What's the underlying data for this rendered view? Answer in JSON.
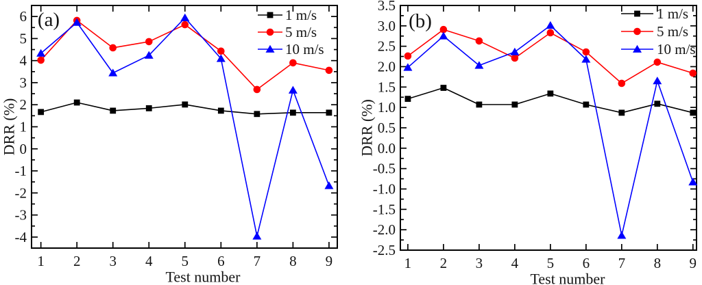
{
  "figure": {
    "xlabel": "Test number",
    "ylabel": "DRR (%)"
  },
  "chart_data": [
    {
      "type": "line",
      "panel_label": "(a)",
      "xlabel": "Test number",
      "ylabel": "DRR (%)",
      "x": [
        1,
        2,
        3,
        4,
        5,
        6,
        7,
        8,
        9
      ],
      "xtick_labels": [
        "1",
        "2",
        "3",
        "4",
        "5",
        "6",
        "7",
        "8",
        "9"
      ],
      "xlim": [
        0.74,
        9.23
      ],
      "ylim": [
        -4.5,
        6.5
      ],
      "ytick_values": [
        6,
        5,
        4,
        3,
        2,
        1,
        0,
        -1,
        -2,
        -3,
        -4
      ],
      "ytick_labels": [
        "6",
        "5",
        "4",
        "3",
        "2",
        "1",
        "0",
        "-1",
        "-2",
        "-3",
        "-4"
      ],
      "ytick_minor_step": 0.5,
      "grid": false,
      "legend_position": "top-right",
      "series": [
        {
          "name": "1 m/s",
          "color": "#000000",
          "marker": "square",
          "values": [
            1.67,
            2.1,
            1.73,
            1.84,
            2.01,
            1.73,
            1.58,
            1.64,
            1.64
          ]
        },
        {
          "name": "5 m/s",
          "color": "#ff0000",
          "marker": "circle",
          "values": [
            4.02,
            5.82,
            4.58,
            4.86,
            5.63,
            4.43,
            2.69,
            3.9,
            3.56
          ]
        },
        {
          "name": "10 m/s",
          "color": "#0000ff",
          "marker": "triangle",
          "values": [
            4.33,
            5.73,
            3.44,
            4.24,
            5.94,
            4.09,
            -3.96,
            2.66,
            -1.67
          ]
        }
      ]
    },
    {
      "type": "line",
      "panel_label": "(b)",
      "xlabel": "Test number",
      "ylabel": "DRR (%)",
      "x": [
        1,
        2,
        3,
        4,
        5,
        6,
        7,
        8,
        9
      ],
      "xtick_labels": [
        "1",
        "2",
        "3",
        "4",
        "5",
        "6",
        "7",
        "8",
        "9"
      ],
      "xlim": [
        0.79,
        9.1
      ],
      "ylim": [
        -2.5,
        3.5
      ],
      "ytick_values": [
        3.5,
        3.0,
        2.5,
        2.0,
        1.5,
        1.0,
        0.5,
        0.0,
        -0.5,
        -1.0,
        -1.5,
        -2.0,
        -2.5
      ],
      "ytick_labels": [
        "3.5",
        "3.0",
        "2.5",
        "2.0",
        "1.5",
        "1.0",
        "0.5",
        "0.0",
        "-0.5",
        "-1.0",
        "-1.5",
        "-2.0",
        "-2.5"
      ],
      "ytick_minor_step": 0.25,
      "grid": false,
      "legend_position": "top-right",
      "series": [
        {
          "name": "1 m/s",
          "color": "#000000",
          "marker": "square",
          "values": [
            1.21,
            1.48,
            1.07,
            1.07,
            1.34,
            1.07,
            0.87,
            1.09,
            0.87
          ]
        },
        {
          "name": "5 m/s",
          "color": "#ff0000",
          "marker": "circle",
          "values": [
            2.26,
            2.91,
            2.63,
            2.21,
            2.83,
            2.36,
            1.59,
            2.11,
            1.84
          ]
        },
        {
          "name": "10 m/s",
          "color": "#0000ff",
          "marker": "triangle",
          "values": [
            1.98,
            2.75,
            2.03,
            2.36,
            3.01,
            2.18,
            -2.14,
            1.65,
            -0.83
          ]
        }
      ]
    }
  ]
}
